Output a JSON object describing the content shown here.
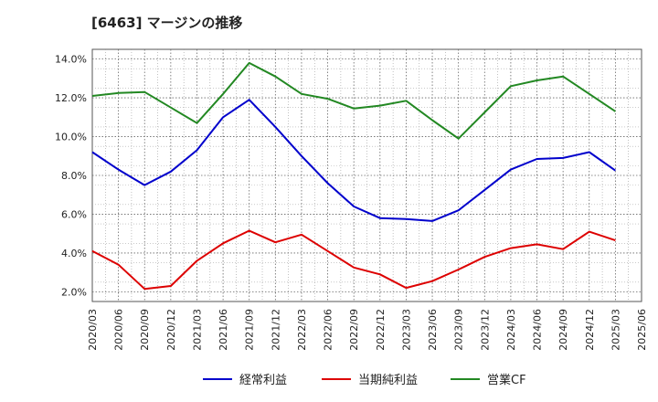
{
  "chart_data": {
    "type": "line",
    "title": "[6463]  マージンの推移",
    "x": [
      "2020/03",
      "2020/06",
      "2020/09",
      "2020/12",
      "2021/03",
      "2021/06",
      "2021/09",
      "2021/12",
      "2022/03",
      "2022/06",
      "2022/09",
      "2022/12",
      "2023/03",
      "2023/06",
      "2023/09",
      "2023/12",
      "2024/03",
      "2024/06",
      "2024/09",
      "2024/12",
      "2025/03"
    ],
    "x_ticks": [
      "2020/03",
      "2020/06",
      "2020/09",
      "2020/12",
      "2021/03",
      "2021/06",
      "2021/09",
      "2021/12",
      "2022/03",
      "2022/06",
      "2022/09",
      "2022/12",
      "2023/03",
      "2023/06",
      "2023/09",
      "2023/12",
      "2024/03",
      "2024/06",
      "2024/09",
      "2024/12",
      "2025/03",
      "2025/06"
    ],
    "y_ticks": [
      "2.0%",
      "4.0%",
      "6.0%",
      "8.0%",
      "10.0%",
      "12.0%",
      "14.0%"
    ],
    "ylim": [
      1.5,
      14.5
    ],
    "grid": true,
    "legend_position": "bottom",
    "series": [
      {
        "name": "経常利益",
        "color": "#0000cc",
        "values": [
          9.2,
          8.3,
          7.5,
          8.2,
          9.3,
          11.0,
          11.9,
          10.5,
          9.0,
          7.6,
          6.4,
          5.8,
          5.75,
          5.65,
          6.2,
          7.25,
          8.3,
          8.85,
          8.9,
          9.2,
          8.25
        ]
      },
      {
        "name": "当期純利益",
        "color": "#dd0000",
        "values": [
          4.1,
          3.4,
          2.15,
          2.3,
          3.6,
          4.5,
          5.15,
          4.55,
          4.95,
          4.1,
          3.25,
          2.9,
          2.2,
          2.55,
          3.15,
          3.8,
          4.25,
          4.45,
          4.2,
          5.1,
          4.65
        ]
      },
      {
        "name": "営業CF",
        "color": "#228822",
        "values": [
          12.1,
          12.25,
          12.3,
          11.5,
          10.7,
          12.2,
          13.8,
          13.1,
          12.2,
          11.95,
          11.45,
          11.6,
          11.85,
          10.85,
          9.9,
          11.25,
          12.6,
          12.9,
          13.1,
          12.2,
          11.3
        ]
      }
    ]
  }
}
